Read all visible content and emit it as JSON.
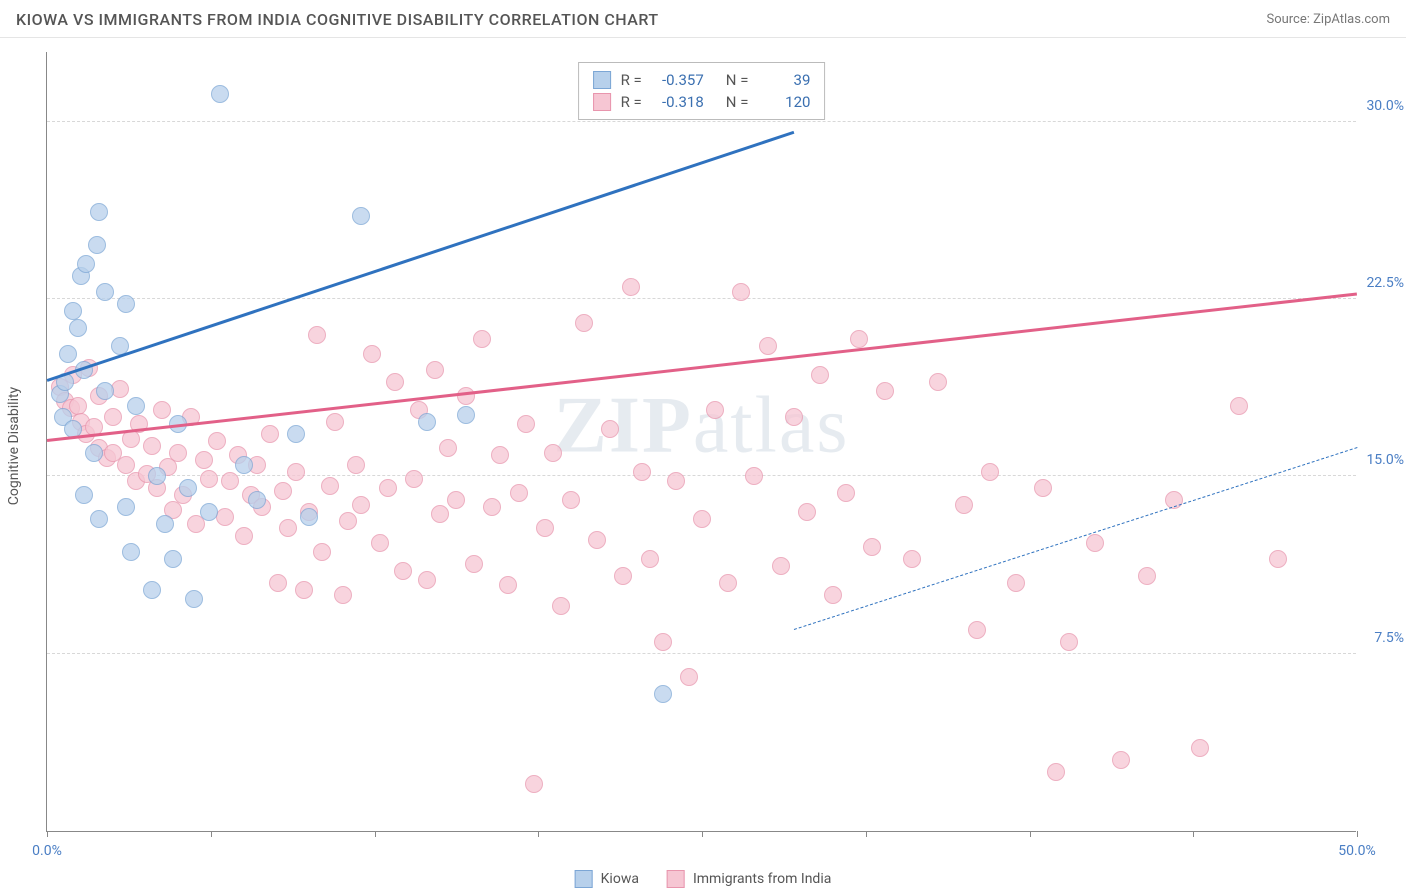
{
  "title": "KIOWA VS IMMIGRANTS FROM INDIA COGNITIVE DISABILITY CORRELATION CHART",
  "source": "Source: ZipAtlas.com",
  "watermark": {
    "bold": "ZIP",
    "rest": "atlas"
  },
  "y_axis_title": "Cognitive Disability",
  "chart": {
    "type": "scatter-with-regression",
    "xlim": [
      0,
      50
    ],
    "ylim": [
      0,
      33
    ],
    "x_ticks": [
      0,
      6.25,
      12.5,
      18.75,
      25,
      31.25,
      37.5,
      43.75,
      50
    ],
    "x_tick_labels": {
      "0": "0.0%",
      "50": "50.0%"
    },
    "y_gridlines": [
      7.5,
      15.0,
      22.5,
      30.0
    ],
    "background_color": "#ffffff",
    "grid_color": "#d8d8d8",
    "axis_color": "#888888",
    "label_color": "#4a7ec4"
  },
  "series": [
    {
      "id": "kiowa",
      "label": "Kiowa",
      "fill": "#b7d0eb",
      "stroke": "#7ca6d5",
      "line": "#2f72bf",
      "R": "-0.357",
      "N": "39",
      "trend": {
        "x1": 0,
        "y1": 19.0,
        "x2": 28.5,
        "y2": 8.5,
        "solid_until_x": 28.5,
        "extend_to_x": 50,
        "extend_to_y": 0.8
      },
      "points": [
        [
          0.5,
          18.5
        ],
        [
          0.7,
          19.0
        ],
        [
          0.8,
          20.2
        ],
        [
          0.6,
          17.5
        ],
        [
          1.0,
          22.0
        ],
        [
          1.2,
          21.3
        ],
        [
          1.3,
          23.5
        ],
        [
          1.4,
          19.5
        ],
        [
          1.0,
          17.0
        ],
        [
          1.5,
          24.0
        ],
        [
          1.9,
          24.8
        ],
        [
          2.0,
          26.2
        ],
        [
          2.2,
          22.8
        ],
        [
          2.2,
          18.6
        ],
        [
          1.8,
          16.0
        ],
        [
          1.4,
          14.2
        ],
        [
          2.8,
          20.5
        ],
        [
          3.0,
          22.3
        ],
        [
          3.4,
          18.0
        ],
        [
          3.0,
          13.7
        ],
        [
          3.2,
          11.8
        ],
        [
          2.0,
          13.2
        ],
        [
          4.2,
          15.0
        ],
        [
          4.5,
          13.0
        ],
        [
          4.8,
          11.5
        ],
        [
          5.0,
          17.2
        ],
        [
          5.4,
          14.5
        ],
        [
          5.6,
          9.8
        ],
        [
          4.0,
          10.2
        ],
        [
          6.2,
          13.5
        ],
        [
          6.6,
          31.2
        ],
        [
          7.5,
          15.5
        ],
        [
          8.0,
          14.0
        ],
        [
          9.5,
          16.8
        ],
        [
          10.0,
          13.3
        ],
        [
          12.0,
          26.0
        ],
        [
          14.5,
          17.3
        ],
        [
          16.0,
          17.6
        ],
        [
          23.5,
          5.8
        ]
      ]
    },
    {
      "id": "india",
      "label": "Immigants from India",
      "label_legend": "Immigrants from India",
      "fill": "#f6c6d3",
      "stroke": "#e895ad",
      "line": "#e26088",
      "R": "-0.318",
      "N": "120",
      "trend": {
        "x1": 0,
        "y1": 16.5,
        "x2": 50,
        "y2": 10.3,
        "solid_until_x": 50
      },
      "points": [
        [
          0.5,
          18.8
        ],
        [
          0.7,
          18.2
        ],
        [
          0.9,
          17.9
        ],
        [
          1.0,
          19.3
        ],
        [
          1.2,
          18.0
        ],
        [
          1.3,
          17.3
        ],
        [
          1.5,
          16.8
        ],
        [
          1.6,
          19.6
        ],
        [
          1.8,
          17.1
        ],
        [
          2.0,
          18.4
        ],
        [
          2.0,
          16.2
        ],
        [
          2.3,
          15.8
        ],
        [
          2.5,
          17.5
        ],
        [
          2.5,
          16.0
        ],
        [
          2.8,
          18.7
        ],
        [
          3.0,
          15.5
        ],
        [
          3.2,
          16.6
        ],
        [
          3.4,
          14.8
        ],
        [
          3.5,
          17.2
        ],
        [
          3.8,
          15.1
        ],
        [
          4.0,
          16.3
        ],
        [
          4.2,
          14.5
        ],
        [
          4.4,
          17.8
        ],
        [
          4.6,
          15.4
        ],
        [
          4.8,
          13.6
        ],
        [
          5.0,
          16.0
        ],
        [
          5.2,
          14.2
        ],
        [
          5.5,
          17.5
        ],
        [
          5.7,
          13.0
        ],
        [
          6.0,
          15.7
        ],
        [
          6.2,
          14.9
        ],
        [
          6.5,
          16.5
        ],
        [
          6.8,
          13.3
        ],
        [
          7.0,
          14.8
        ],
        [
          7.3,
          15.9
        ],
        [
          7.5,
          12.5
        ],
        [
          7.8,
          14.2
        ],
        [
          8.0,
          15.5
        ],
        [
          8.2,
          13.7
        ],
        [
          8.5,
          16.8
        ],
        [
          8.8,
          10.5
        ],
        [
          9.0,
          14.4
        ],
        [
          9.2,
          12.8
        ],
        [
          9.5,
          15.2
        ],
        [
          9.8,
          10.2
        ],
        [
          10.0,
          13.5
        ],
        [
          10.3,
          21.0
        ],
        [
          10.5,
          11.8
        ],
        [
          10.8,
          14.6
        ],
        [
          11.0,
          17.3
        ],
        [
          11.3,
          10.0
        ],
        [
          11.5,
          13.1
        ],
        [
          11.8,
          15.5
        ],
        [
          12.0,
          13.8
        ],
        [
          12.4,
          20.2
        ],
        [
          12.7,
          12.2
        ],
        [
          13.0,
          14.5
        ],
        [
          13.3,
          19.0
        ],
        [
          13.6,
          11.0
        ],
        [
          14.0,
          14.9
        ],
        [
          14.2,
          17.8
        ],
        [
          14.5,
          10.6
        ],
        [
          14.8,
          19.5
        ],
        [
          15.0,
          13.4
        ],
        [
          15.3,
          16.2
        ],
        [
          15.6,
          14.0
        ],
        [
          16.0,
          18.4
        ],
        [
          16.3,
          11.3
        ],
        [
          16.6,
          20.8
        ],
        [
          17.0,
          13.7
        ],
        [
          17.3,
          15.9
        ],
        [
          17.6,
          10.4
        ],
        [
          18.0,
          14.3
        ],
        [
          18.3,
          17.2
        ],
        [
          18.6,
          2.0
        ],
        [
          19.0,
          12.8
        ],
        [
          19.3,
          16.0
        ],
        [
          19.6,
          9.5
        ],
        [
          20.0,
          14.0
        ],
        [
          20.5,
          21.5
        ],
        [
          21.0,
          12.3
        ],
        [
          21.5,
          17.0
        ],
        [
          22.0,
          10.8
        ],
        [
          22.3,
          23.0
        ],
        [
          22.7,
          15.2
        ],
        [
          23.0,
          11.5
        ],
        [
          23.5,
          8.0
        ],
        [
          24.0,
          14.8
        ],
        [
          24.5,
          6.5
        ],
        [
          25.0,
          13.2
        ],
        [
          25.5,
          17.8
        ],
        [
          26.0,
          10.5
        ],
        [
          26.5,
          22.8
        ],
        [
          27.0,
          15.0
        ],
        [
          27.5,
          20.5
        ],
        [
          28.0,
          11.2
        ],
        [
          28.5,
          17.5
        ],
        [
          29.0,
          13.5
        ],
        [
          29.5,
          19.3
        ],
        [
          30.0,
          10.0
        ],
        [
          30.5,
          14.3
        ],
        [
          31.0,
          20.8
        ],
        [
          31.5,
          12.0
        ],
        [
          32.0,
          18.6
        ],
        [
          33.0,
          11.5
        ],
        [
          34.0,
          19.0
        ],
        [
          35.0,
          13.8
        ],
        [
          35.5,
          8.5
        ],
        [
          36.0,
          15.2
        ],
        [
          37.0,
          10.5
        ],
        [
          38.0,
          14.5
        ],
        [
          38.5,
          2.5
        ],
        [
          39.0,
          8.0
        ],
        [
          40.0,
          12.2
        ],
        [
          41.0,
          3.0
        ],
        [
          42.0,
          10.8
        ],
        [
          43.0,
          14.0
        ],
        [
          44.0,
          3.5
        ],
        [
          45.5,
          18.0
        ],
        [
          47.0,
          11.5
        ]
      ]
    }
  ],
  "stats_box": {
    "columns": [
      "R =",
      "N ="
    ]
  },
  "legend": {
    "items": [
      "Kiowa",
      "Immigrants from India"
    ]
  }
}
